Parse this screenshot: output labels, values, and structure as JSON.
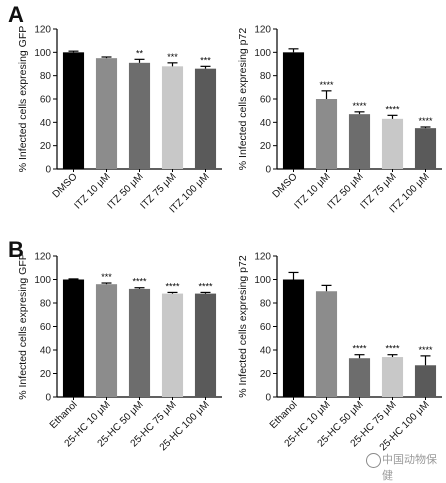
{
  "panel_labels": [
    "A",
    "B"
  ],
  "watermark": "中国动物保健",
  "colors": [
    "#000000",
    "#8c8c8c",
    "#6d6d6d",
    "#c8c8c8",
    "#5a5a5a"
  ],
  "chart_data": [
    {
      "panel": "A",
      "type": "bar",
      "ylabel": "% Infected cells expresing GFP",
      "ylim": [
        0,
        120
      ],
      "yticks": [
        0,
        20,
        40,
        60,
        80,
        100,
        120
      ],
      "categories": [
        "DMSO",
        "ITZ 10 μM",
        "ITZ 50 μM",
        "ITZ 75 μM",
        "ITZ 100 μM"
      ],
      "values": [
        100,
        95,
        91,
        88,
        86
      ],
      "errors": [
        1,
        1,
        3,
        3,
        2
      ],
      "significance": [
        "",
        "",
        "**",
        "***",
        "***"
      ]
    },
    {
      "panel": "A",
      "type": "bar",
      "ylabel": "% Infected cells expresing p72",
      "ylim": [
        0,
        120
      ],
      "yticks": [
        0,
        20,
        40,
        60,
        80,
        100,
        120
      ],
      "categories": [
        "DMSO",
        "ITZ 10 μM",
        "ITZ 50 μM",
        "ITZ 75 μM",
        "ITZ 100 μM"
      ],
      "values": [
        100,
        60,
        47,
        43,
        35
      ],
      "errors": [
        3,
        7,
        2,
        3,
        1
      ],
      "significance": [
        "",
        "****",
        "****",
        "****",
        "****"
      ]
    },
    {
      "panel": "B",
      "type": "bar",
      "ylabel": "% Infected cells expresing GFP",
      "ylim": [
        0,
        120
      ],
      "yticks": [
        0,
        20,
        40,
        60,
        80,
        100,
        120
      ],
      "categories": [
        "Ethanol",
        "25-HC 10 μM",
        "25-HC 50 μM",
        "25-HC 75 μM",
        "25-HC 100 μM"
      ],
      "values": [
        100,
        96,
        92,
        88,
        88
      ],
      "errors": [
        0.5,
        1,
        1,
        1,
        1
      ],
      "significance": [
        "",
        "***",
        "****",
        "****",
        "****"
      ]
    },
    {
      "panel": "B",
      "type": "bar",
      "ylabel": "% Infected cells expresing p72",
      "ylim": [
        0,
        120
      ],
      "yticks": [
        0,
        20,
        40,
        60,
        80,
        100,
        120
      ],
      "categories": [
        "Ethanol",
        "25-HC 10 μM",
        "25-HC 50 μM",
        "25-HC 75 μM",
        "25-HC 100 μM"
      ],
      "values": [
        100,
        90,
        33,
        34,
        27
      ],
      "errors": [
        6,
        5,
        3,
        2,
        8
      ],
      "significance": [
        "",
        "",
        "****",
        "****",
        "****"
      ]
    }
  ]
}
